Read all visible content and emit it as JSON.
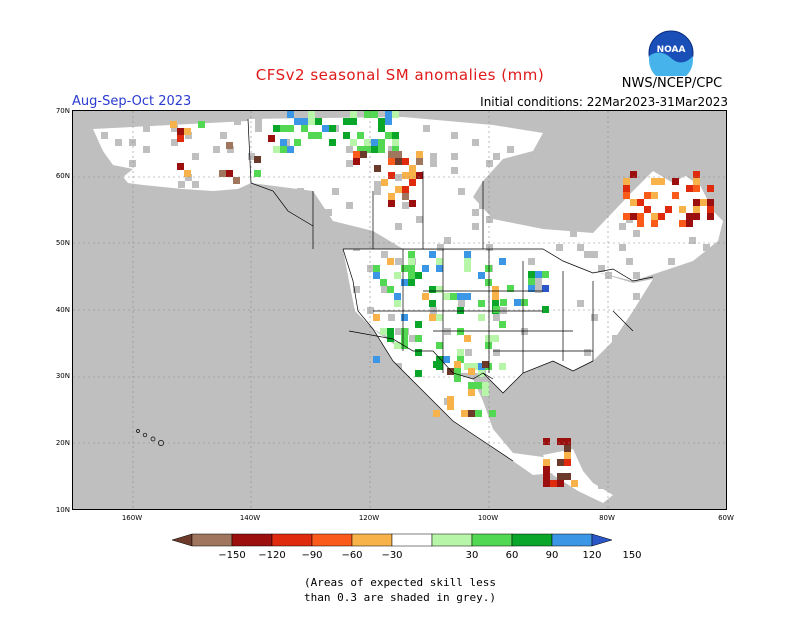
{
  "header": {
    "title": "CFSv2 seasonal SM anomalies (mm)",
    "org": "NWS/NCEP/CPC",
    "season": "Aug-Sep-Oct 2023",
    "initial_conditions": "Initial conditions: 22Mar2023-31Mar2023",
    "logo_text": "NOAA"
  },
  "map": {
    "lat_labels": [
      "70N",
      "60N",
      "50N",
      "40N",
      "30N",
      "20N",
      "10N"
    ],
    "lon_labels": [
      "160W",
      "140W",
      "120W",
      "100W",
      "80W",
      "60W"
    ],
    "colors": {
      "ocean": "#ffffff",
      "skill_masked_grey": "#bfbfbf",
      "land_neutral": "#ffffff",
      "gridline": "#7f7f7f"
    }
  },
  "legend": {
    "ticks": [
      "−150",
      "−120",
      "−90",
      "−60",
      "−30",
      "30",
      "60",
      "90",
      "120",
      "150"
    ],
    "colors": [
      "#6b3a2a",
      "#a0775e",
      "#9b0f0f",
      "#e02a0e",
      "#fa5a1a",
      "#f8b24a",
      "#ffffff",
      "#b7f5a8",
      "#52d852",
      "#0aa62a",
      "#3c96e6",
      "#2a56c8"
    ]
  },
  "notes": [
    "(Areas of expected skill less",
    "than 0.3 are shaded in grey.)"
  ]
}
